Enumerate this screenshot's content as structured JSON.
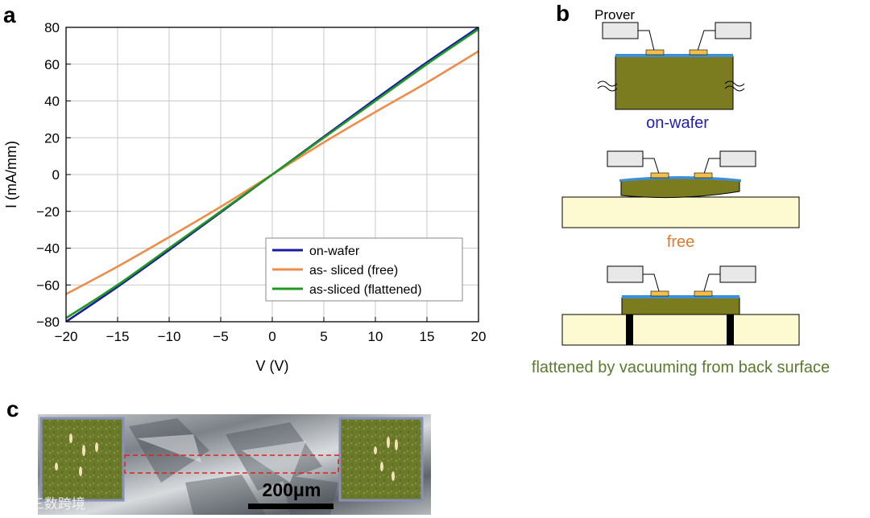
{
  "panels": {
    "a": "a",
    "b": "b",
    "c": "c"
  },
  "chart_data": {
    "type": "line",
    "title": "",
    "xlabel": "V (V)",
    "ylabel": "I (mA/mm)",
    "xlim": [
      -20,
      20
    ],
    "ylim": [
      -80,
      80
    ],
    "x_ticks": [
      -20,
      -15,
      -10,
      -5,
      0,
      5,
      10,
      15,
      20
    ],
    "y_ticks": [
      -80,
      -60,
      -40,
      -20,
      0,
      20,
      40,
      60,
      80
    ],
    "x_tick_labels": [
      "−20",
      "−15",
      "−10",
      "−5",
      "0",
      "5",
      "10",
      "15",
      "20"
    ],
    "y_tick_labels": [
      "−80",
      "−60",
      "−40",
      "−20",
      "0",
      "20",
      "40",
      "60",
      "80"
    ],
    "grid": true,
    "legend_position": "bottom-right",
    "x": [
      -20,
      -15,
      -10,
      -5,
      0,
      5,
      10,
      15,
      20
    ],
    "series": [
      {
        "name": "on-wafer",
        "color": "#1a1aa6",
        "values": [
          -80,
          -61,
          -41,
          -20.5,
          0,
          20.5,
          41,
          61,
          80
        ]
      },
      {
        "name": "as- sliced (free)",
        "color": "#ee8c4a",
        "values": [
          -65,
          -50,
          -34,
          -17.5,
          0,
          17.5,
          34,
          50,
          67
        ]
      },
      {
        "name": "as-sliced (flattened)",
        "color": "#1f9a1f",
        "values": [
          -78,
          -60,
          -40,
          -20,
          0,
          20,
          40,
          60,
          79
        ]
      }
    ]
  },
  "diagrams": {
    "prover_label": "Prover",
    "on_wafer_caption": "on-wafer",
    "free_caption": "free",
    "flattened_caption": "flattened by vacuuming from back surface",
    "colors": {
      "substrate": "#7b7b1f",
      "blue_layer": "#3d8fd9",
      "contact": "#f2c04a",
      "stage": "#fdfad2",
      "probe": "#e8e8e8",
      "on_wafer_text": "#1f1fb4",
      "free_text": "#e07b30",
      "flattened_text": "#5a7a2e"
    }
  },
  "micrograph": {
    "scale_bar_label": "200μm",
    "watermark": "©© 三数跨境"
  }
}
